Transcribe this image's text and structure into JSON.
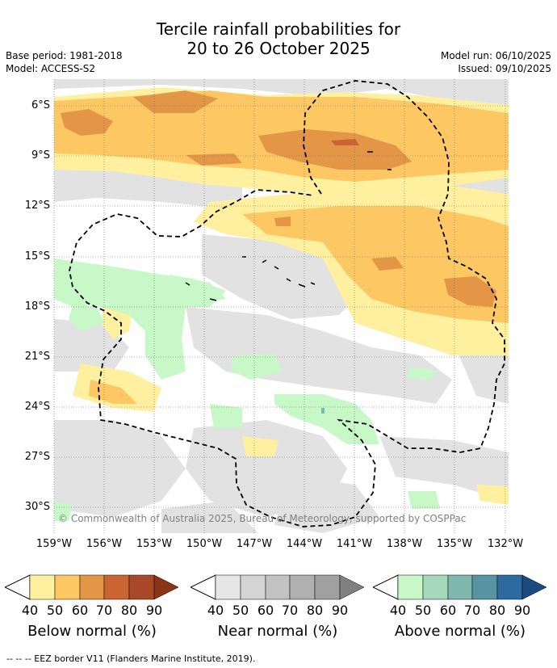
{
  "header": {
    "title_line1": "Tercile rainfall probabilities for",
    "title_line2": "20 to 26 October 2025",
    "base_period": "Base period: 1981-2018",
    "model": "Model: ACCESS-S2",
    "model_run": "Model run: 06/10/2025",
    "issued": "Issued: 09/10/2025"
  },
  "map": {
    "y_ticks": [
      "6°S",
      "9°S",
      "12°S",
      "15°S",
      "18°S",
      "21°S",
      "24°S",
      "27°S",
      "30°S"
    ],
    "x_ticks": [
      "159°W",
      "156°W",
      "153°W",
      "150°W",
      "147°W",
      "144°W",
      "141°W",
      "138°W",
      "135°W",
      "132°W"
    ],
    "copyright": "© Commonwealth of Australia 2025, Bureau of Meteorology, supported by COSPPac"
  },
  "legend": {
    "ticks": [
      "40",
      "50",
      "60",
      "70",
      "80",
      "90"
    ],
    "below": {
      "label": "Below normal (%)",
      "colors": [
        "#fff0a0",
        "#fdc864",
        "#e39746",
        "#ca6430",
        "#a84828",
        "#8a3418"
      ]
    },
    "near": {
      "label": "Near normal (%)",
      "colors": [
        "#e6e6e6",
        "#d4d4d4",
        "#c2c2c2",
        "#b0b0b0",
        "#a0a0a0",
        "#808080"
      ]
    },
    "above": {
      "label": "Above normal (%)",
      "colors": [
        "#c8f7c8",
        "#a6d8bc",
        "#80b8b0",
        "#5894a4",
        "#2c6aa0",
        "#1a4a80"
      ]
    }
  },
  "footnote": "--  --  -- EEZ border V11 (Flanders Marine Institute, 2019)."
}
